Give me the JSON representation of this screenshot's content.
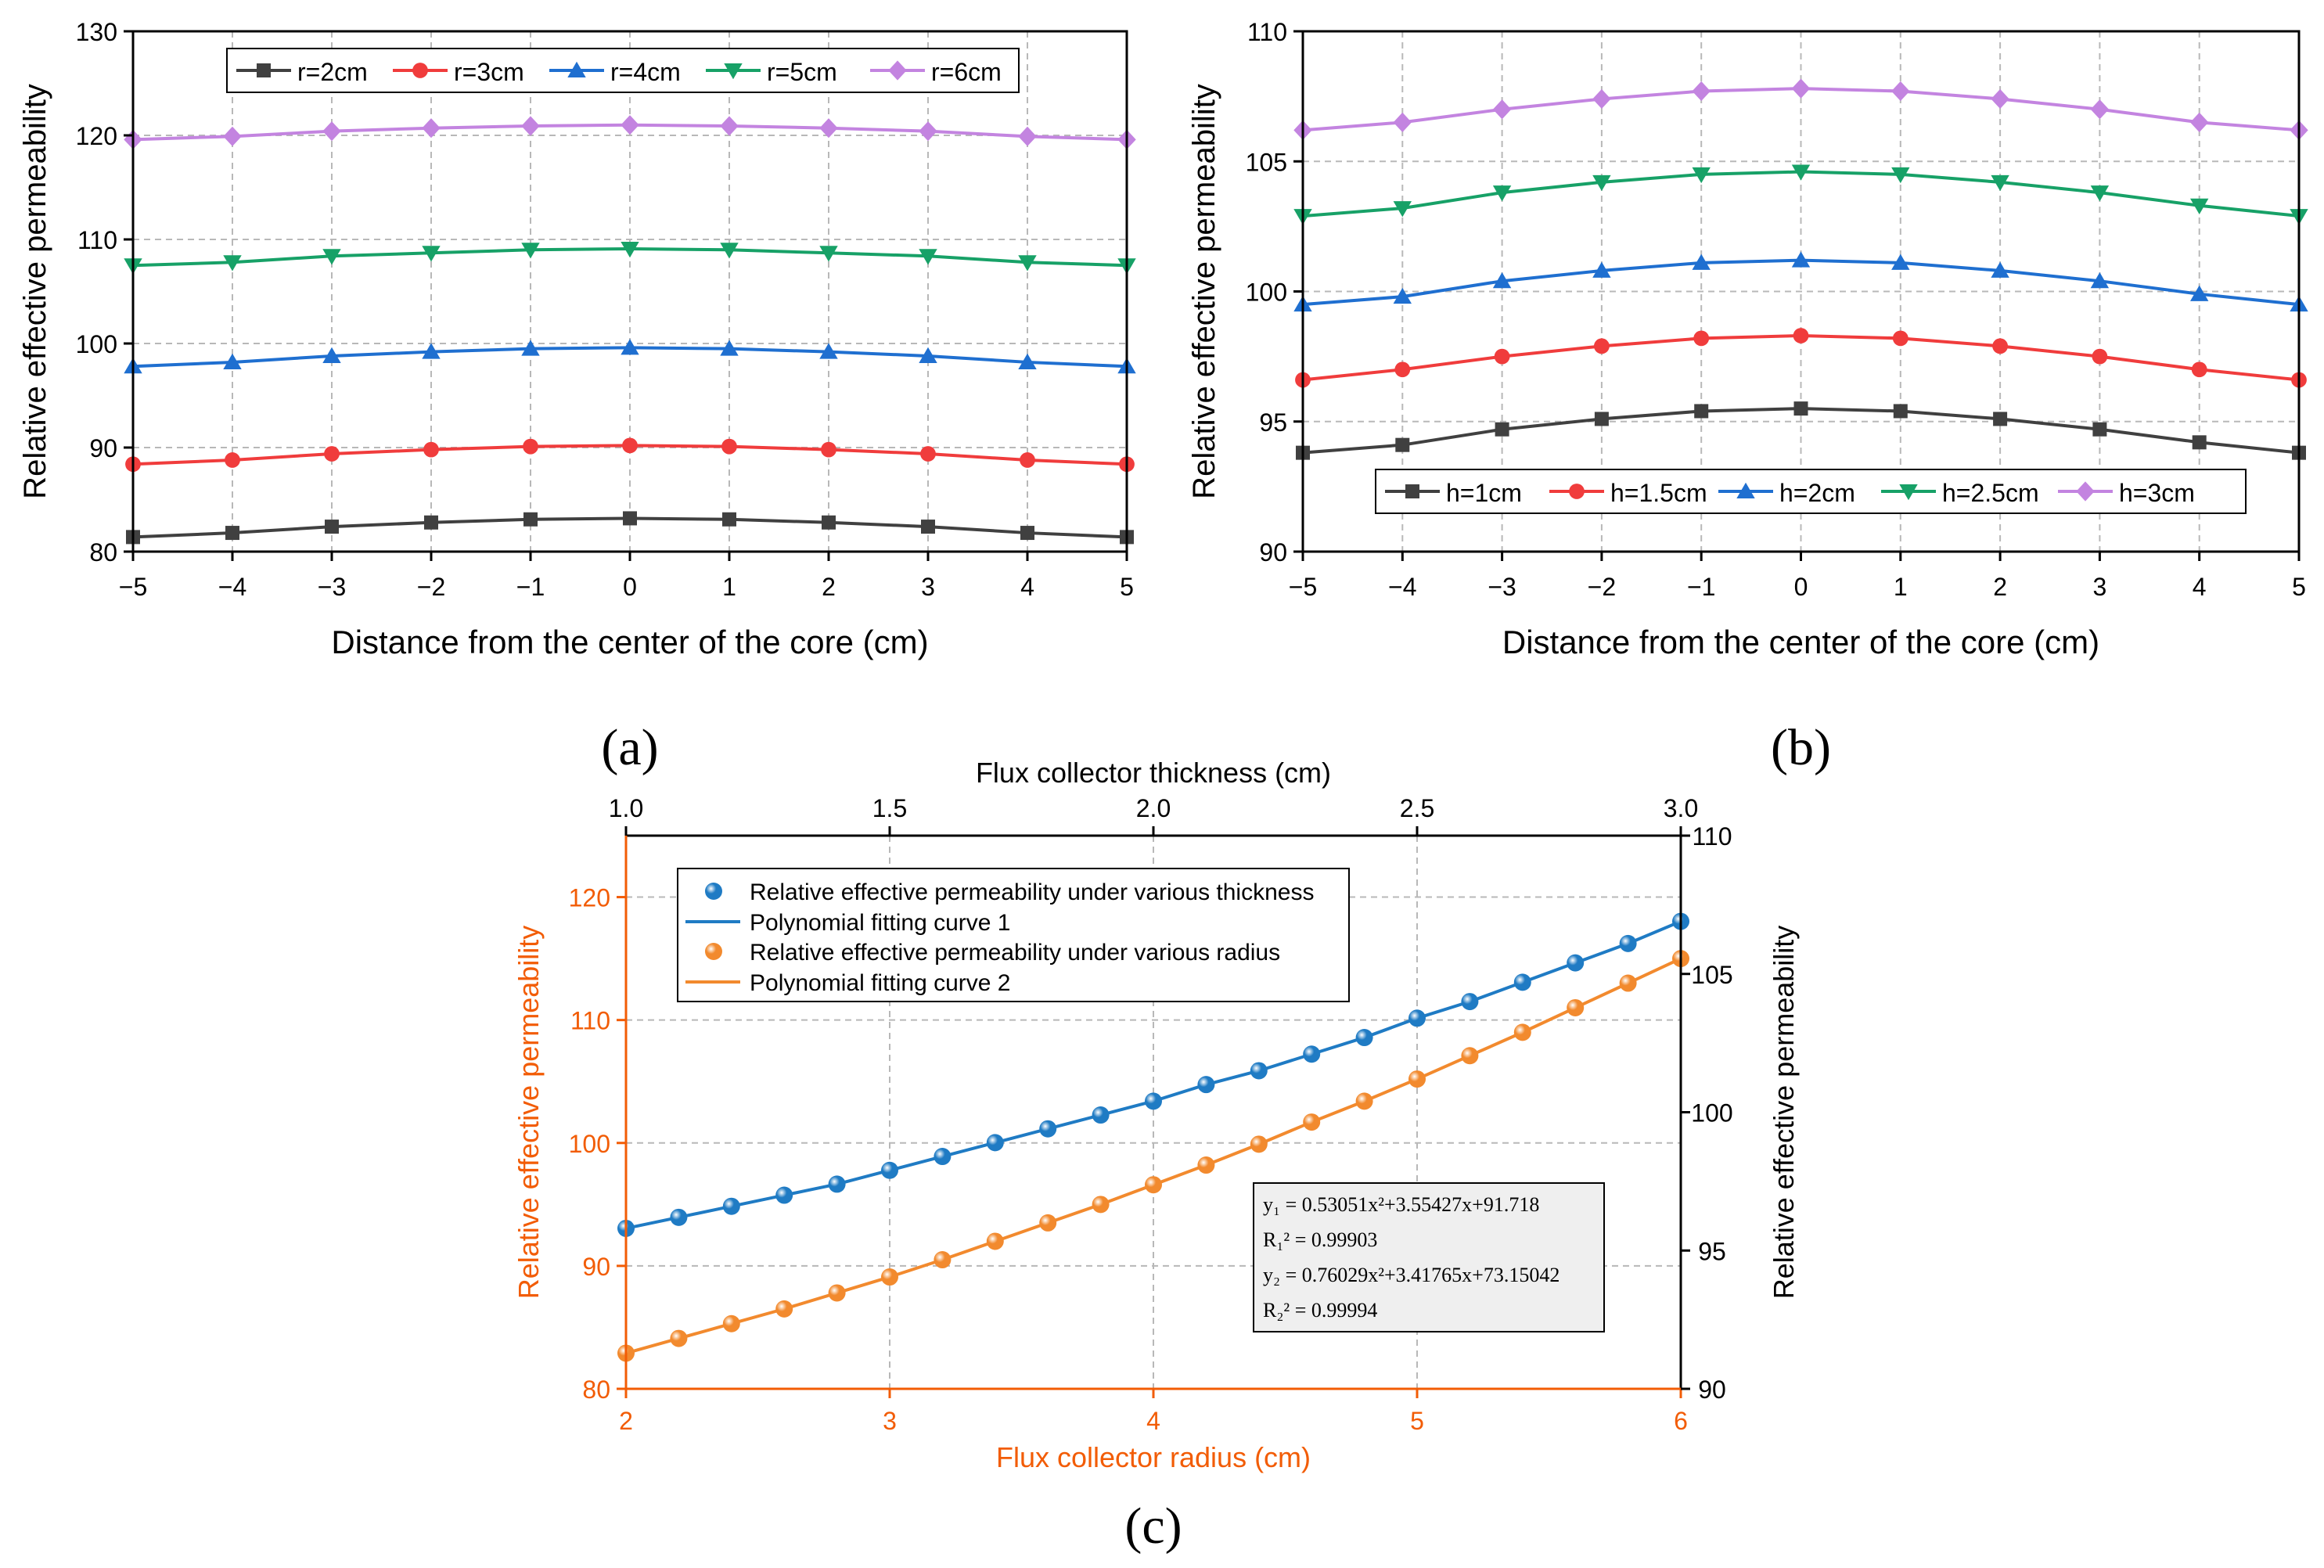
{
  "chart_data": [
    {
      "type": "line",
      "id": "a",
      "panel_label": "(a)",
      "xlabel": "Distance from the center of the core (cm)",
      "ylabel": "Relative effective permeability",
      "xlim": [
        -5,
        5
      ],
      "ylim": [
        80,
        130
      ],
      "xticks": [
        -5,
        -4,
        -3,
        -2,
        -1,
        0,
        1,
        2,
        3,
        4,
        5
      ],
      "xtick_labels": [
        "−5",
        "−4",
        "−3",
        "−2",
        "−1",
        "0",
        "1",
        "2",
        "3",
        "4",
        "5"
      ],
      "yticks": [
        80,
        90,
        100,
        110,
        120,
        130
      ],
      "ytick_labels": [
        "80",
        "90",
        "100",
        "110",
        "120",
        "130"
      ],
      "grid": true,
      "legend_position": "top",
      "x": [
        -5,
        -4,
        -3,
        -2,
        -1,
        0,
        1,
        2,
        3,
        4,
        5
      ],
      "series": [
        {
          "name": "r=2cm",
          "color": "#404040",
          "marker": "square",
          "values": [
            81.4,
            81.8,
            82.4,
            82.8,
            83.1,
            83.2,
            83.1,
            82.8,
            82.4,
            81.8,
            81.4
          ]
        },
        {
          "name": "r=3cm",
          "color": "#f03c3c",
          "marker": "circle",
          "values": [
            88.4,
            88.8,
            89.4,
            89.8,
            90.1,
            90.2,
            90.1,
            89.8,
            89.4,
            88.8,
            88.4
          ]
        },
        {
          "name": "r=4cm",
          "color": "#1f6fd0",
          "marker": "triangle-up",
          "values": [
            97.8,
            98.2,
            98.8,
            99.2,
            99.5,
            99.6,
            99.5,
            99.2,
            98.8,
            98.2,
            97.8
          ]
        },
        {
          "name": "r=5cm",
          "color": "#17a167",
          "marker": "triangle-down",
          "values": [
            107.5,
            107.8,
            108.4,
            108.7,
            109.0,
            109.1,
            109.0,
            108.7,
            108.4,
            107.8,
            107.5
          ]
        },
        {
          "name": "r=6cm",
          "color": "#c384e0",
          "marker": "diamond",
          "values": [
            119.6,
            119.9,
            120.4,
            120.7,
            120.9,
            121.0,
            120.9,
            120.7,
            120.4,
            119.9,
            119.6
          ]
        }
      ]
    },
    {
      "type": "line",
      "id": "b",
      "panel_label": "(b)",
      "xlabel": "Distance from the center of the core (cm)",
      "ylabel": "Relative effective permeability",
      "xlim": [
        -5,
        5
      ],
      "ylim": [
        90,
        110
      ],
      "xticks": [
        -5,
        -4,
        -3,
        -2,
        -1,
        0,
        1,
        2,
        3,
        4,
        5
      ],
      "xtick_labels": [
        "−5",
        "−4",
        "−3",
        "−2",
        "−1",
        "0",
        "1",
        "2",
        "3",
        "4",
        "5"
      ],
      "yticks": [
        90,
        95,
        100,
        105,
        110
      ],
      "ytick_labels": [
        "90",
        "95",
        "100",
        "105",
        "110"
      ],
      "grid": true,
      "legend_position": "bottom",
      "x": [
        -5,
        -4,
        -3,
        -2,
        -1,
        0,
        1,
        2,
        3,
        4,
        5
      ],
      "series": [
        {
          "name": "h=1cm",
          "color": "#404040",
          "marker": "square",
          "values": [
            93.8,
            94.1,
            94.7,
            95.1,
            95.4,
            95.5,
            95.4,
            95.1,
            94.7,
            94.2,
            93.8
          ]
        },
        {
          "name": "h=1.5cm",
          "color": "#f03c3c",
          "marker": "circle",
          "values": [
            96.6,
            97.0,
            97.5,
            97.9,
            98.2,
            98.3,
            98.2,
            97.9,
            97.5,
            97.0,
            96.6
          ]
        },
        {
          "name": "h=2cm",
          "color": "#1f6fd0",
          "marker": "triangle-up",
          "values": [
            99.5,
            99.8,
            100.4,
            100.8,
            101.1,
            101.2,
            101.1,
            100.8,
            100.4,
            99.9,
            99.5
          ]
        },
        {
          "name": "h=2.5cm",
          "color": "#17a167",
          "marker": "triangle-down",
          "values": [
            102.9,
            103.2,
            103.8,
            104.2,
            104.5,
            104.6,
            104.5,
            104.2,
            103.8,
            103.3,
            102.9
          ]
        },
        {
          "name": "h=3cm",
          "color": "#c384e0",
          "marker": "diamond",
          "values": [
            106.2,
            106.5,
            107.0,
            107.4,
            107.7,
            107.8,
            107.7,
            107.4,
            107.0,
            106.5,
            106.2
          ]
        }
      ]
    },
    {
      "type": "scatter",
      "id": "c",
      "panel_label": "(c)",
      "xlabel_top": "Flux collector thickness (cm)",
      "xlabel_bottom": "Flux collector radius (cm)",
      "ylabel_left": "Relative effective permeability",
      "ylabel_right": "Relative effective permeability",
      "x_top_lim": [
        1.0,
        3.0
      ],
      "x_top_ticks": [
        1.0,
        1.5,
        2.0,
        2.5,
        3.0
      ],
      "x_top_tick_labels": [
        "1.0",
        "1.5",
        "2.0",
        "2.5",
        "3.0"
      ],
      "x_bottom_lim": [
        2,
        6
      ],
      "x_bottom_ticks": [
        2,
        3,
        4,
        5,
        6
      ],
      "x_bottom_tick_labels": [
        "2",
        "3",
        "4",
        "5",
        "6"
      ],
      "y_left_lim": [
        80,
        125
      ],
      "y_left_ticks": [
        80,
        90,
        100,
        110,
        120
      ],
      "y_left_tick_labels": [
        "80",
        "90",
        "100",
        "110",
        "120"
      ],
      "y_right_lim": [
        90,
        110
      ],
      "y_right_ticks": [
        90,
        95,
        100,
        105,
        110
      ],
      "y_right_tick_labels": [
        "90",
        "95",
        "100",
        "105",
        "110"
      ],
      "accent_color": "#f25c05",
      "grid": true,
      "legend_position": "top-left",
      "legend": [
        "Relative effective permeability under various thickness",
        "Polynomial fitting curve 1",
        "Relative effective permeability under various radius",
        "Polynomial fitting curve 2"
      ],
      "series": [
        {
          "name": "Relative effective permeability under various thickness",
          "kind": "points",
          "axis": "top-right",
          "color": "#1f7bc4",
          "x": [
            1.0,
            1.1,
            1.2,
            1.3,
            1.4,
            1.5,
            1.6,
            1.7,
            1.8,
            1.9,
            2.0,
            2.1,
            2.2,
            2.3,
            2.4,
            2.5,
            2.6,
            2.7,
            2.8,
            2.9,
            3.0
          ],
          "values": [
            95.8,
            96.2,
            96.6,
            97.0,
            97.4,
            97.9,
            98.4,
            98.9,
            99.4,
            99.9,
            100.4,
            101.0,
            101.5,
            102.1,
            102.7,
            103.4,
            104.0,
            104.7,
            105.4,
            106.1,
            106.9
          ]
        },
        {
          "name": "Polynomial fitting curve 1",
          "kind": "line",
          "axis": "top-right",
          "color": "#1f7bc4",
          "fit": {
            "a": 0.53051,
            "b": 3.55427,
            "c": 91.718
          }
        },
        {
          "name": "Relative effective permeability under various radius",
          "kind": "points",
          "axis": "bottom-left",
          "color": "#f28a2e",
          "x": [
            2.0,
            2.2,
            2.4,
            2.6,
            2.8,
            3.0,
            3.2,
            3.4,
            3.6,
            3.8,
            4.0,
            4.2,
            4.4,
            4.6,
            4.8,
            5.0,
            5.2,
            5.4,
            5.6,
            5.8,
            6.0
          ],
          "values": [
            82.9,
            84.1,
            85.3,
            86.5,
            87.8,
            89.1,
            90.5,
            92.0,
            93.5,
            95.0,
            96.6,
            98.2,
            99.9,
            101.7,
            103.4,
            105.2,
            107.1,
            109.0,
            111.0,
            113.0,
            115.0
          ]
        },
        {
          "name": "Polynomial fitting curve 2",
          "kind": "line",
          "axis": "bottom-left",
          "color": "#f28a2e",
          "fit": {
            "a": 0.76029,
            "b": 3.41765,
            "c": 73.15042
          }
        }
      ],
      "equation_box": {
        "line1": "y₁ = 0.53051x²+3.55427x+91.718",
        "line2": "R₁² = 0.99903",
        "line3": "y₂ = 0.76029x²+3.41765x+73.15042",
        "line4": "R₂² = 0.99994"
      }
    }
  ]
}
